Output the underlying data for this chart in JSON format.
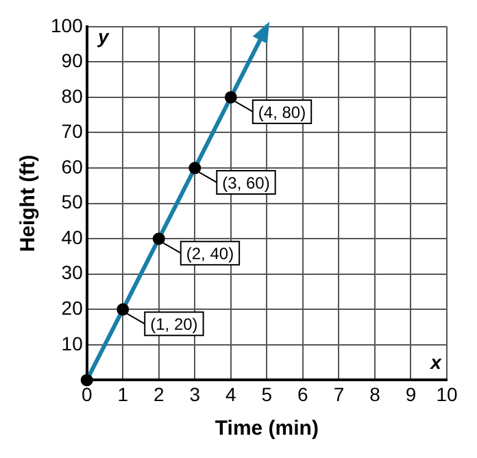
{
  "chart_data": {
    "type": "line",
    "xlabel": "Time (min)",
    "ylabel": "Height (ft)",
    "x": [
      0,
      1,
      2,
      3,
      4,
      5
    ],
    "series": [
      {
        "color": "#1a7fa8",
        "values": [
          0,
          20,
          40,
          60,
          80,
          100
        ]
      }
    ],
    "xlim": [
      0,
      10
    ],
    "xticks": [
      0,
      1,
      2,
      3,
      4,
      5,
      6,
      7,
      8,
      9,
      10
    ],
    "ylim": [
      0,
      100
    ],
    "yticks": [
      {
        "value": 0,
        "label": null
      },
      10,
      20,
      30,
      40,
      50,
      60,
      70,
      80,
      90,
      100
    ],
    "grid": true,
    "legend": false,
    "marker": "circle",
    "line_style": "solid",
    "annotations": [
      {
        "text": "(1, 20)",
        "x": 1,
        "y": 20
      },
      {
        "text": "(2, 40)",
        "x": 2,
        "y": 40
      },
      {
        "text": "(3, 60)",
        "x": 3,
        "y": 60
      },
      {
        "text": "(4, 80)",
        "x": 4,
        "y": 80
      },
      "x",
      "y"
    ]
  }
}
